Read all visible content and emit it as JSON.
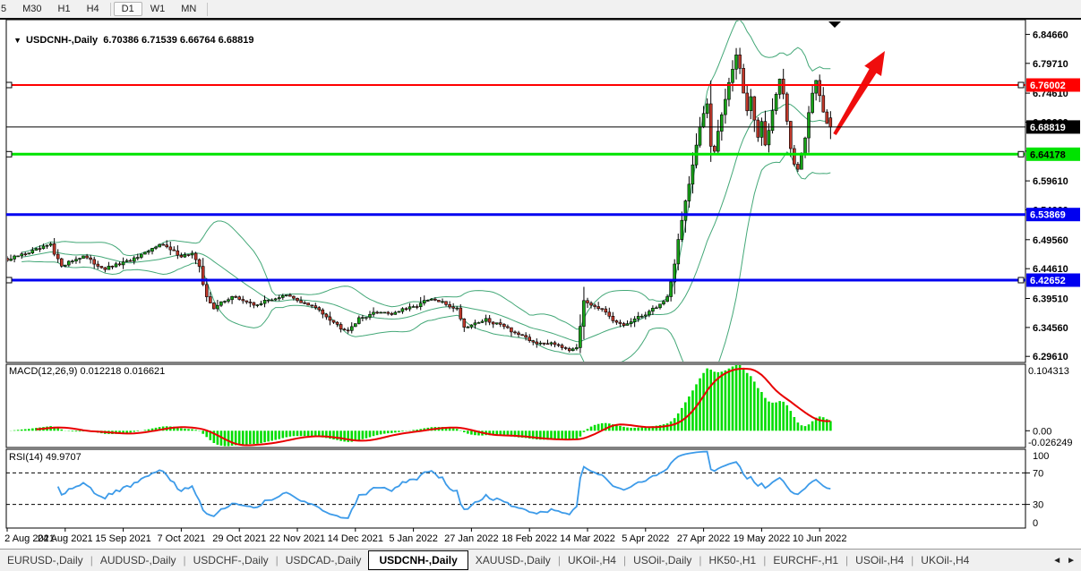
{
  "toolbar": {
    "timeframes": [
      {
        "label": "5",
        "active": false,
        "partial": true
      },
      {
        "label": "M30",
        "active": false
      },
      {
        "label": "H1",
        "active": false
      },
      {
        "label": "H4",
        "active": false
      },
      {
        "label": "D1",
        "active": true
      },
      {
        "label": "W1",
        "active": false
      },
      {
        "label": "MN",
        "active": false
      }
    ]
  },
  "chart": {
    "collapse_icon": "▼",
    "title_text": "USDCNH-,Daily  6.70386 6.71539 6.66764 6.68819"
  },
  "chart_data": {
    "type": "candlestick",
    "symbol": "USDCNH-,Daily",
    "timeframe": "Daily",
    "ohlc": {
      "open": "6.70386",
      "high": "6.71539",
      "low": "6.66764",
      "close": "6.68819"
    },
    "price_axis_ticks": [
      "6.84660",
      "6.79710",
      "6.74610",
      "6.69660",
      "6.64710",
      "6.59610",
      "6.54660",
      "6.49560",
      "6.44610",
      "6.39510",
      "6.34560",
      "6.29610"
    ],
    "dates": [
      "2 Aug 2021",
      "24 Aug 2021",
      "15 Sep 2021",
      "7 Oct 2021",
      "29 Oct 2021",
      "22 Nov 2021",
      "14 Dec 2021",
      "5 Jan 2022",
      "27 Jan 2022",
      "18 Feb 2022",
      "14 Mar 2022",
      "5 Apr 2022",
      "27 Apr 2022",
      "19 May 2022",
      "10 Jun 2022"
    ],
    "candles_count": 228,
    "close_keypoints": [
      [
        0,
        6.46
      ],
      [
        3,
        6.468
      ],
      [
        6,
        6.474
      ],
      [
        9,
        6.48
      ],
      [
        12,
        6.487
      ],
      [
        13,
        6.47
      ],
      [
        15,
        6.452
      ],
      [
        18,
        6.46
      ],
      [
        21,
        6.468
      ],
      [
        24,
        6.455
      ],
      [
        27,
        6.446
      ],
      [
        30,
        6.452
      ],
      [
        33,
        6.458
      ],
      [
        36,
        6.465
      ],
      [
        39,
        6.475
      ],
      [
        42,
        6.49
      ],
      [
        45,
        6.478
      ],
      [
        48,
        6.468
      ],
      [
        51,
        6.472
      ],
      [
        53,
        6.448
      ],
      [
        54,
        6.42
      ],
      [
        55,
        6.4
      ],
      [
        57,
        6.376
      ],
      [
        59,
        6.389
      ],
      [
        62,
        6.398
      ],
      [
        65,
        6.392
      ],
      [
        68,
        6.384
      ],
      [
        71,
        6.39
      ],
      [
        74,
        6.396
      ],
      [
        77,
        6.4
      ],
      [
        80,
        6.392
      ],
      [
        83,
        6.384
      ],
      [
        86,
        6.376
      ],
      [
        89,
        6.36
      ],
      [
        92,
        6.345
      ],
      [
        94,
        6.342
      ],
      [
        97,
        6.36
      ],
      [
        100,
        6.368
      ],
      [
        103,
        6.373
      ],
      [
        106,
        6.369
      ],
      [
        109,
        6.376
      ],
      [
        112,
        6.38
      ],
      [
        115,
        6.39
      ],
      [
        117,
        6.393
      ],
      [
        120,
        6.388
      ],
      [
        122,
        6.382
      ],
      [
        124,
        6.378
      ],
      [
        126,
        6.346
      ],
      [
        129,
        6.353
      ],
      [
        132,
        6.359
      ],
      [
        134,
        6.351
      ],
      [
        136,
        6.353
      ],
      [
        139,
        6.34
      ],
      [
        142,
        6.33
      ],
      [
        144,
        6.323
      ],
      [
        147,
        6.317
      ],
      [
        150,
        6.32
      ],
      [
        152,
        6.316
      ],
      [
        155,
        6.308
      ],
      [
        157,
        6.313
      ],
      [
        158,
        6.345
      ],
      [
        159,
        6.392
      ],
      [
        161,
        6.386
      ],
      [
        164,
        6.376
      ],
      [
        167,
        6.356
      ],
      [
        170,
        6.349
      ],
      [
        173,
        6.359
      ],
      [
        176,
        6.369
      ],
      [
        179,
        6.381
      ],
      [
        181,
        6.39
      ],
      [
        182,
        6.398
      ],
      [
        183,
        6.425
      ],
      [
        184,
        6.455
      ],
      [
        185,
        6.495
      ],
      [
        186,
        6.53
      ],
      [
        187,
        6.562
      ],
      [
        188,
        6.59
      ],
      [
        189,
        6.622
      ],
      [
        190,
        6.655
      ],
      [
        191,
        6.688
      ],
      [
        192,
        6.712
      ],
      [
        193,
        6.73
      ],
      [
        194,
        6.656
      ],
      [
        195,
        6.648
      ],
      [
        196,
        6.682
      ],
      [
        197,
        6.71
      ],
      [
        198,
        6.735
      ],
      [
        199,
        6.762
      ],
      [
        200,
        6.788
      ],
      [
        201,
        6.812
      ],
      [
        202,
        6.79
      ],
      [
        203,
        6.748
      ],
      [
        204,
        6.716
      ],
      [
        205,
        6.74
      ],
      [
        206,
        6.7
      ],
      [
        207,
        6.672
      ],
      [
        208,
        6.698
      ],
      [
        209,
        6.656
      ],
      [
        210,
        6.682
      ],
      [
        211,
        6.715
      ],
      [
        212,
        6.745
      ],
      [
        213,
        6.768
      ],
      [
        214,
        6.745
      ],
      [
        215,
        6.698
      ],
      [
        216,
        6.65
      ],
      [
        217,
        6.624
      ],
      [
        218,
        6.618
      ],
      [
        219,
        6.645
      ],
      [
        220,
        6.672
      ],
      [
        221,
        6.715
      ],
      [
        222,
        6.745
      ],
      [
        223,
        6.768
      ],
      [
        224,
        6.742
      ],
      [
        225,
        6.712
      ],
      [
        226,
        6.695
      ],
      [
        227,
        6.68819
      ]
    ],
    "last_candle_ohlc": [
      6.70386,
      6.71539,
      6.66764,
      6.68819
    ],
    "candle_colors": {
      "up": "#17A317",
      "down": "#C0392B",
      "wick": "#000000"
    },
    "bollinger": {
      "period": 20,
      "deviation": 2,
      "color": "#44A878"
    },
    "horizontal_lines": [
      {
        "value": 6.76002,
        "label": "6.76002",
        "color": "#FF0000",
        "label_bg": "#FF0000",
        "label_fg": "#FFFFFF",
        "width": 2,
        "selected": true
      },
      {
        "value": 6.68819,
        "label": "6.68819",
        "color": "#000000",
        "label_bg": "#000000",
        "label_fg": "#FFFFFF",
        "width": 1,
        "selected": false
      },
      {
        "value": 6.64178,
        "label": "6.64178",
        "color": "#00E300",
        "label_bg": "#00E300",
        "label_fg": "#000000",
        "width": 3,
        "selected": true
      },
      {
        "value": 6.53869,
        "label": "6.53869",
        "color": "#0000F0",
        "label_bg": "#0000F0",
        "label_fg": "#FFFFFF",
        "width": 3,
        "selected": false
      },
      {
        "value": 6.42652,
        "label": "6.42652",
        "color": "#0000F0",
        "label_bg": "#0000F0",
        "label_fg": "#FFFFFF",
        "width": 3,
        "selected": true
      }
    ],
    "macd": {
      "label_text": "MACD(12,26,9) 0.012218 0.016621",
      "axis_labels": [
        "0.104313",
        "0.00",
        "-0.026249"
      ],
      "axis_max": 0.104313,
      "axis_min": -0.026249,
      "histogram_color": "#00DD00",
      "signal_color": "#E80000"
    },
    "rsi": {
      "label_text": "RSI(14) 49.9707",
      "axis_labels": [
        "100",
        "70",
        "30",
        "0"
      ],
      "level_lines": [
        70,
        30
      ],
      "color": "#3D9BE9"
    },
    "annotations": {
      "arrow_color": "#EF0D0D",
      "marker_triangle": "▼"
    }
  },
  "tabs": {
    "items": [
      {
        "label": "EURUSD-,Daily",
        "active": false
      },
      {
        "label": "AUDUSD-,Daily",
        "active": false
      },
      {
        "label": "USDCHF-,Daily",
        "active": false
      },
      {
        "label": "USDCAD-,Daily",
        "active": false
      },
      {
        "label": "USDCNH-,Daily",
        "active": true
      },
      {
        "label": "XAUUSD-,Daily",
        "active": false
      },
      {
        "label": "UKOil-,H4",
        "active": false
      },
      {
        "label": "USOil-,Daily",
        "active": false
      },
      {
        "label": "HK50-,H1",
        "active": false
      },
      {
        "label": "EURCHF-,H1",
        "active": false
      },
      {
        "label": "USOil-,H4",
        "active": false
      },
      {
        "label": "UKOil-,H4",
        "active": false
      }
    ],
    "scroll_icons": [
      "◄",
      "►"
    ]
  }
}
